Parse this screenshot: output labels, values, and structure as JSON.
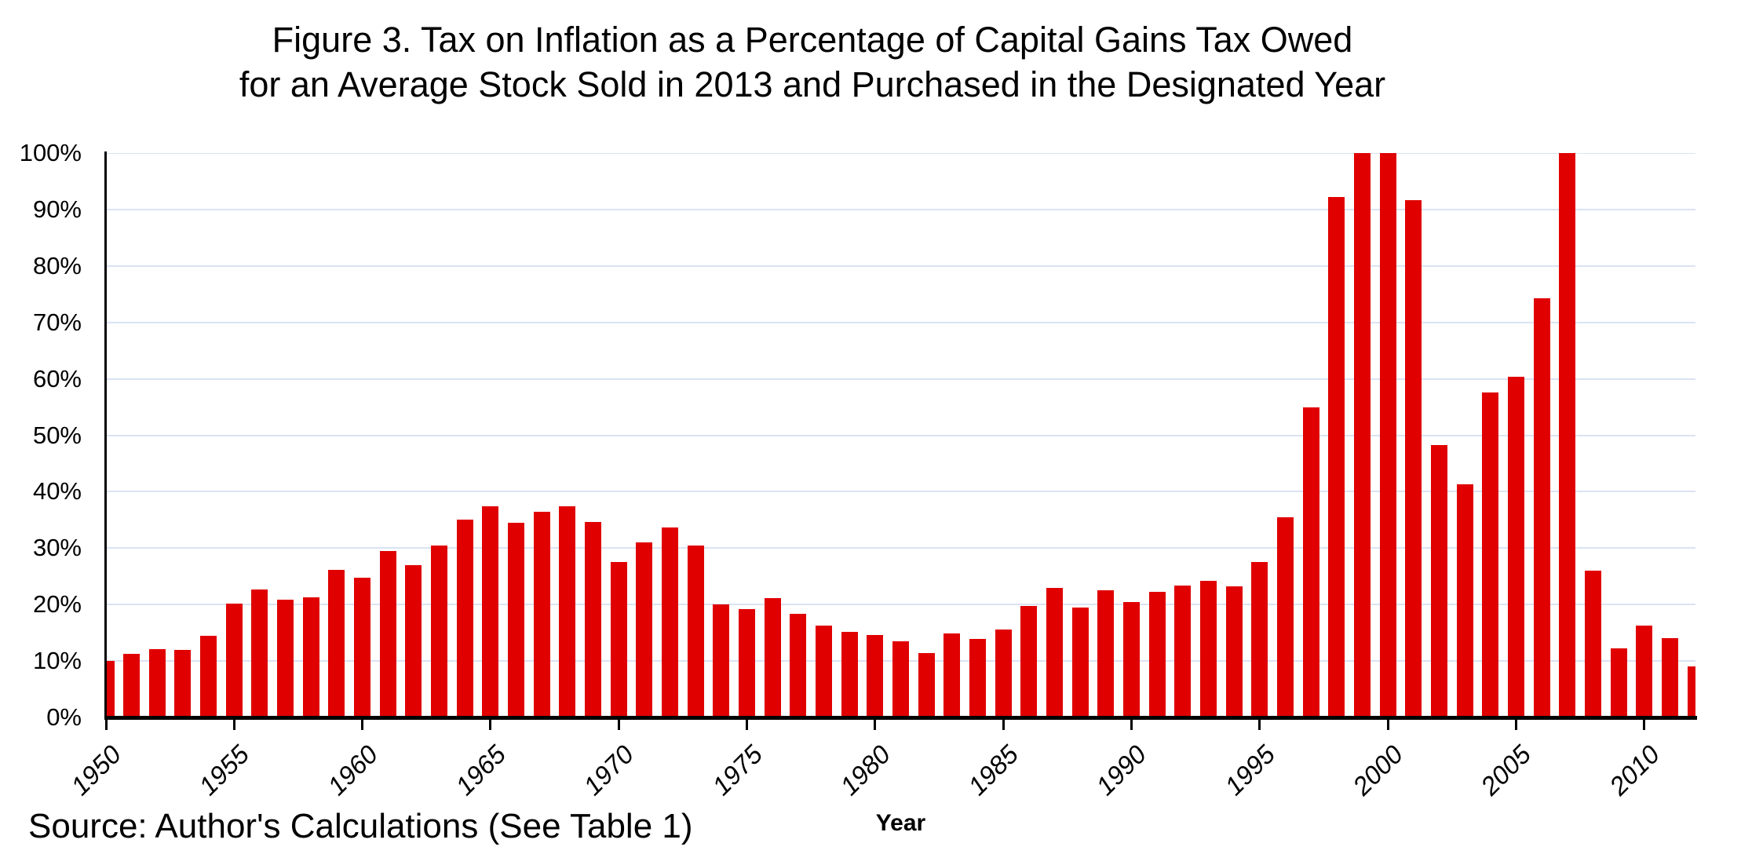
{
  "title": {
    "line1": "Figure 3. Tax on Inflation as a Percentage of Capital Gains Tax Owed",
    "line2": "for an Average Stock Sold in 2013 and Purchased in the Designated Year"
  },
  "source_note": "Source: Author's Calculations (See Table 1)",
  "chart_data": {
    "type": "bar",
    "title": "Figure 3. Tax on Inflation as a Percentage of Capital Gains Tax Owed for an Average Stock Sold in 2013 and Purchased in the Designated Year",
    "xlabel": "Year",
    "ylabel": "",
    "x": [
      1950,
      1951,
      1952,
      1953,
      1954,
      1955,
      1956,
      1957,
      1958,
      1959,
      1960,
      1961,
      1962,
      1963,
      1964,
      1965,
      1966,
      1967,
      1968,
      1969,
      1970,
      1971,
      1972,
      1973,
      1974,
      1975,
      1976,
      1977,
      1978,
      1979,
      1980,
      1981,
      1982,
      1983,
      1984,
      1985,
      1986,
      1987,
      1988,
      1989,
      1990,
      1991,
      1992,
      1993,
      1994,
      1995,
      1996,
      1997,
      1998,
      1999,
      2000,
      2001,
      2002,
      2003,
      2004,
      2005,
      2006,
      2007,
      2008,
      2009,
      2010,
      2011,
      2012
    ],
    "values": [
      10.0,
      11.3,
      12.1,
      12.0,
      14.5,
      20.1,
      22.7,
      20.8,
      21.3,
      26.1,
      24.7,
      29.5,
      27.0,
      30.4,
      35.0,
      37.4,
      34.5,
      36.5,
      37.4,
      34.7,
      27.5,
      31.0,
      33.7,
      30.4,
      20.0,
      19.2,
      21.2,
      18.4,
      16.3,
      15.2,
      14.6,
      13.5,
      11.4,
      14.9,
      13.9,
      15.6,
      19.8,
      22.9,
      19.5,
      22.6,
      20.5,
      22.2,
      23.3,
      24.2,
      23.2,
      27.5,
      35.5,
      55.0,
      92.2,
      100.0,
      100.0,
      91.7,
      48.3,
      41.3,
      57.6,
      60.3,
      74.3,
      100.0,
      26.0,
      12.3,
      16.3,
      14.0,
      9.0
    ],
    "ylim": [
      0,
      100
    ],
    "ytick_labels": [
      "0%",
      "10%",
      "20%",
      "30%",
      "40%",
      "50%",
      "60%",
      "70%",
      "80%",
      "90%",
      "100%"
    ],
    "xtick_labels": [
      "1950",
      "1955",
      "1960",
      "1965",
      "1970",
      "1975",
      "1980",
      "1985",
      "1990",
      "1995",
      "2000",
      "2005",
      "2010"
    ],
    "grid": true,
    "legend": "none",
    "bar_color": "#e00000",
    "gridline_color": "#dae3f3",
    "axis_color": "#000000"
  }
}
